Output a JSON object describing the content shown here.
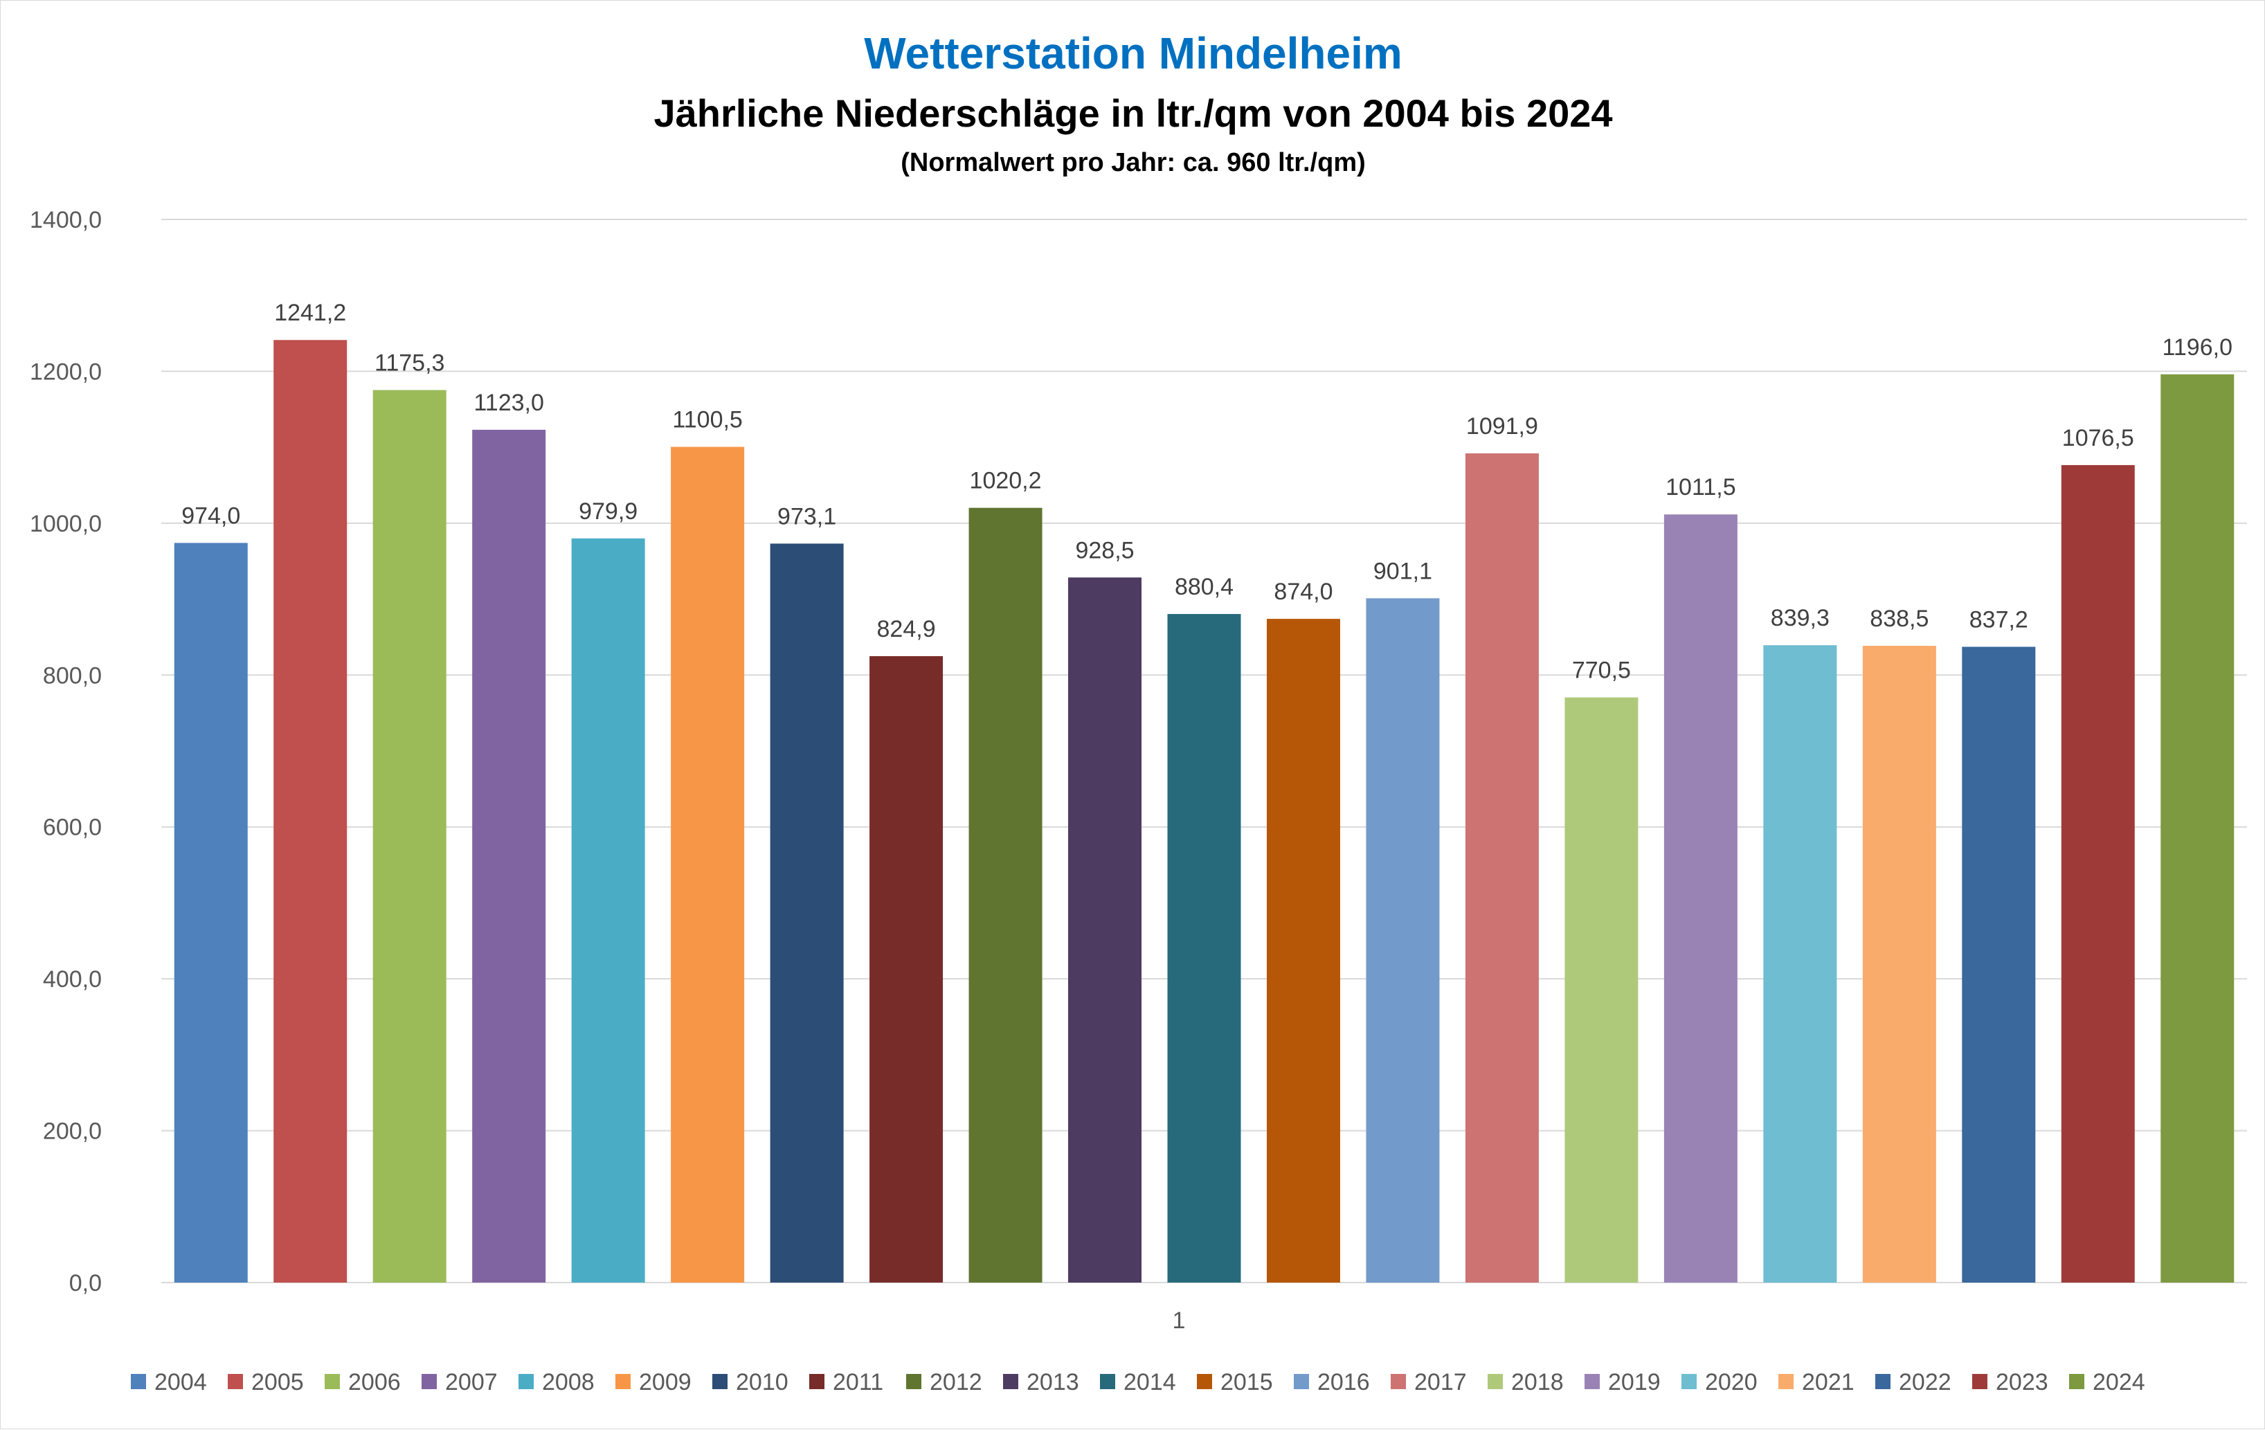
{
  "chart_data": {
    "type": "bar",
    "title": "Wetterstation Mindelheim",
    "subtitle": "Jährliche Niederschläge in ltr./qm von 2004 bis 2024",
    "note": "(Normalwert pro Jahr: ca. 960 ltr./qm)",
    "categories": [
      "1"
    ],
    "ylim": [
      0,
      1400
    ],
    "y_ticks": [
      "0,0",
      "200,0",
      "400,0",
      "600,0",
      "800,0",
      "1000,0",
      "1200,0",
      "1400,0"
    ],
    "grid": true,
    "legend_position": "bottom",
    "series": [
      {
        "name": "2004",
        "value": 974.0,
        "label": "974,0",
        "color": "#4f81bd"
      },
      {
        "name": "2005",
        "value": 1241.2,
        "label": "1241,2",
        "color": "#c0504d"
      },
      {
        "name": "2006",
        "value": 1175.3,
        "label": "1175,3",
        "color": "#9bbb59"
      },
      {
        "name": "2007",
        "value": 1123.0,
        "label": "1123,0",
        "color": "#8064a2"
      },
      {
        "name": "2008",
        "value": 979.9,
        "label": "979,9",
        "color": "#4bacc6"
      },
      {
        "name": "2009",
        "value": 1100.5,
        "label": "1100,5",
        "color": "#f79646"
      },
      {
        "name": "2010",
        "value": 973.1,
        "label": "973,1",
        "color": "#2c4d75"
      },
      {
        "name": "2011",
        "value": 824.9,
        "label": "824,9",
        "color": "#772c2a"
      },
      {
        "name": "2012",
        "value": 1020.2,
        "label": "1020,2",
        "color": "#5f7530"
      },
      {
        "name": "2013",
        "value": 928.5,
        "label": "928,5",
        "color": "#4d3b62"
      },
      {
        "name": "2014",
        "value": 880.4,
        "label": "880,4",
        "color": "#276a7c"
      },
      {
        "name": "2015",
        "value": 874.0,
        "label": "874,0",
        "color": "#b65708"
      },
      {
        "name": "2016",
        "value": 901.1,
        "label": "901,1",
        "color": "#729aca"
      },
      {
        "name": "2017",
        "value": 1091.9,
        "label": "1091,9",
        "color": "#cd7371"
      },
      {
        "name": "2018",
        "value": 770.5,
        "label": "770,5",
        "color": "#afc97a"
      },
      {
        "name": "2019",
        "value": 1011.5,
        "label": "1011,5",
        "color": "#9983b5"
      },
      {
        "name": "2020",
        "value": 839.3,
        "label": "839,3",
        "color": "#6fbdd1"
      },
      {
        "name": "2021",
        "value": 838.5,
        "label": "838,5",
        "color": "#f9ab6b"
      },
      {
        "name": "2022",
        "value": 837.2,
        "label": "837,2",
        "color": "#3a679c"
      },
      {
        "name": "2023",
        "value": 1076.5,
        "label": "1076,5",
        "color": "#9e3b39"
      },
      {
        "name": "2024",
        "value": 1196.0,
        "label": "1196,0",
        "color": "#7e9a40"
      }
    ]
  }
}
